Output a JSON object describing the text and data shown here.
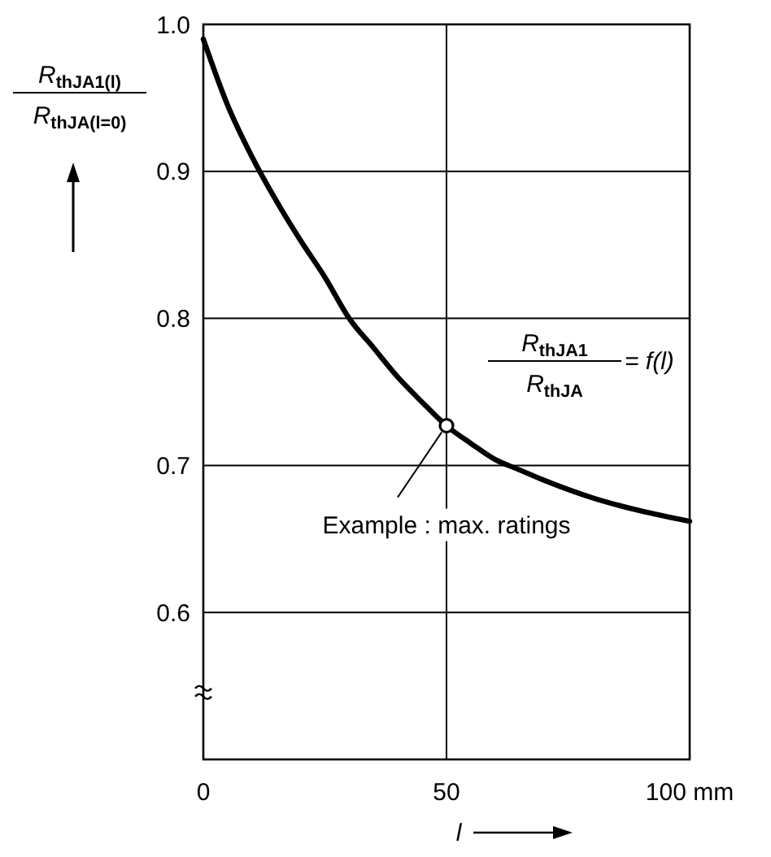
{
  "chart_data": {
    "type": "line",
    "xlabel": "l",
    "ylabel": "R$_{thJA1(l)}$ R$_{thJA(l=0)}$",
    "x": [
      0,
      5,
      10,
      15,
      20,
      25,
      30,
      35,
      40,
      45,
      50,
      55,
      60,
      65,
      70,
      80,
      90,
      100
    ],
    "series": [
      {
        "color": "#000000",
        "values": [
          0.99,
          0.945,
          0.91,
          0.88,
          0.853,
          0.828,
          0.8,
          0.78,
          0.76,
          0.743,
          0.727,
          0.715,
          0.704,
          0.697,
          0.69,
          0.678,
          0.669,
          0.662
        ]
      },
      {
        "type": "scatter",
        "color": "#000000",
        "marker": "circle",
        "x": [
          50
        ],
        "values": [
          0.727
        ]
      }
    ],
    "xlim": [
      0,
      100
    ],
    "xticks": [
      0,
      50,
      {
        "value": 100,
        "label": "100 mm"
      }
    ],
    "ylim": [
      0.5,
      1
    ],
    "yticks": [
      0.6,
      0.7,
      0.8,
      0.9,
      {
        "value": 1,
        "label": "1.0"
      }
    ],
    "grid": true,
    "marker": "none",
    "line_style": "solid",
    "annotations": [
      "R$_{thJA1}$ R$_{thJA}$ = f(l)",
      {
        "text": "Example : max. ratings",
        "x": 50,
        "y": 0.727
      }
    ]
  }
}
